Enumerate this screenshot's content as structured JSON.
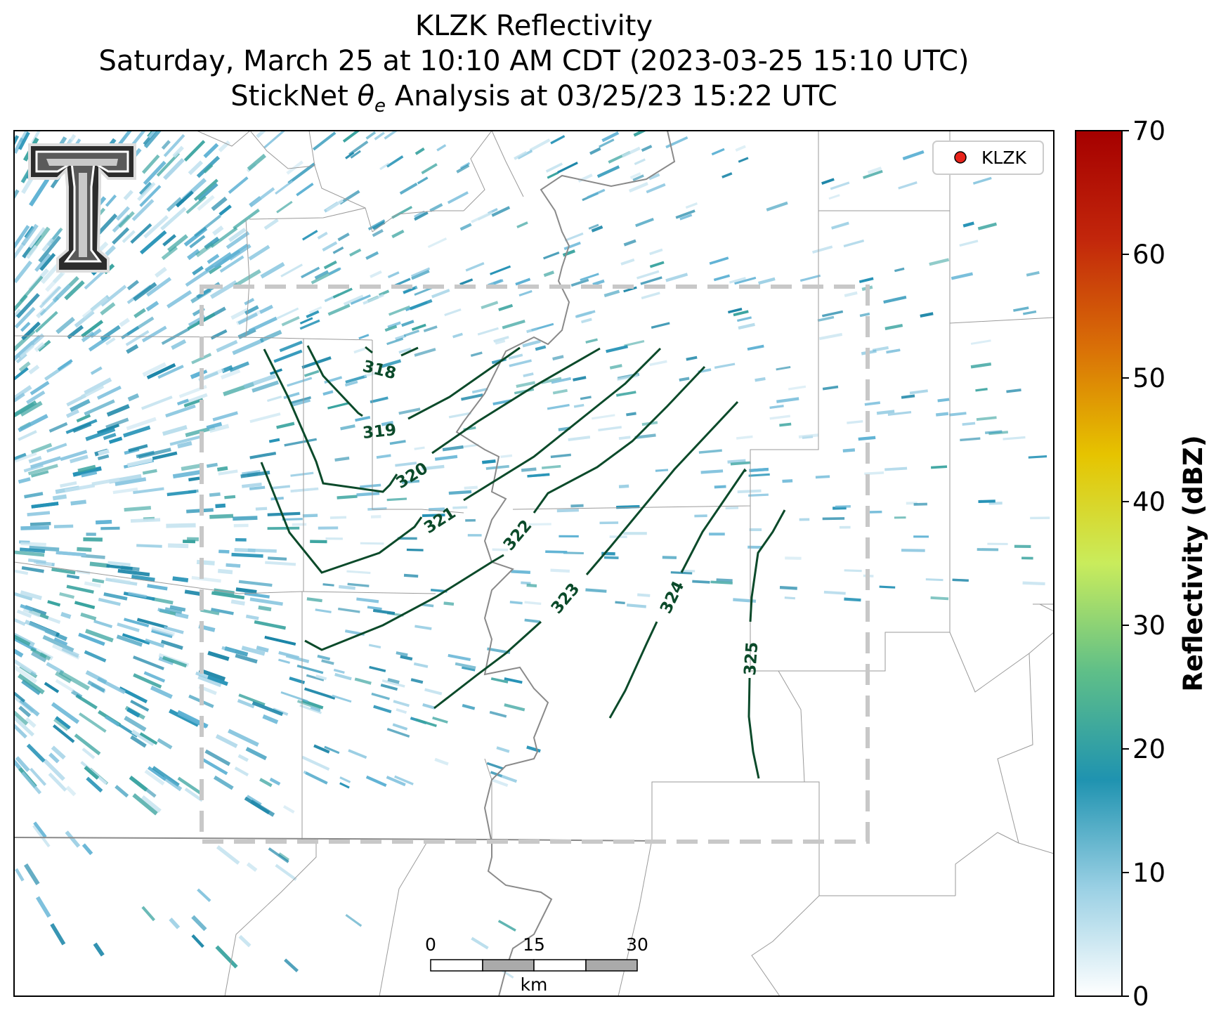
{
  "title": {
    "line1": "KLZK Reflectivity",
    "line2": "Saturday, March 25 at 10:10 AM CDT (2023-03-25 15:10 UTC)",
    "line3_prefix": "StickNet ",
    "line3_symbol": "θ",
    "line3_subscript": "e",
    "line3_suffix": " Analysis at 03/25/23 15:22 UTC"
  },
  "legend": {
    "marker_color": "#e8231b",
    "label": "KLZK"
  },
  "logo": {
    "icon": "texas-tech-double-t-logo",
    "letters": "TT"
  },
  "colorbar": {
    "label": "Reflectivity (dBZ)",
    "min": 0,
    "max": 70,
    "ticks": [
      "0",
      "10",
      "20",
      "30",
      "40",
      "50",
      "60",
      "70"
    ],
    "colors": [
      "#ffffff",
      "#9ad0e4",
      "#1f93b0",
      "#5fbf88",
      "#c9ec5c",
      "#e6c400",
      "#d96f07",
      "#c2260b",
      "#a50000"
    ]
  },
  "contours": {
    "color": "#0b4a2a",
    "labels": [
      "318",
      "319",
      "320",
      "321",
      "322",
      "323",
      "324",
      "325"
    ]
  },
  "scale_bar": {
    "ticks": [
      "0",
      "15",
      "30"
    ],
    "unit": "km"
  },
  "colors": {
    "reflectivity_primary": "#2592b6",
    "reflectivity_light": "#8ac6e0",
    "analysis_box": "#c8c8c8",
    "state_border": "#8c8c8c",
    "county_border": "#9a9a9a"
  }
}
